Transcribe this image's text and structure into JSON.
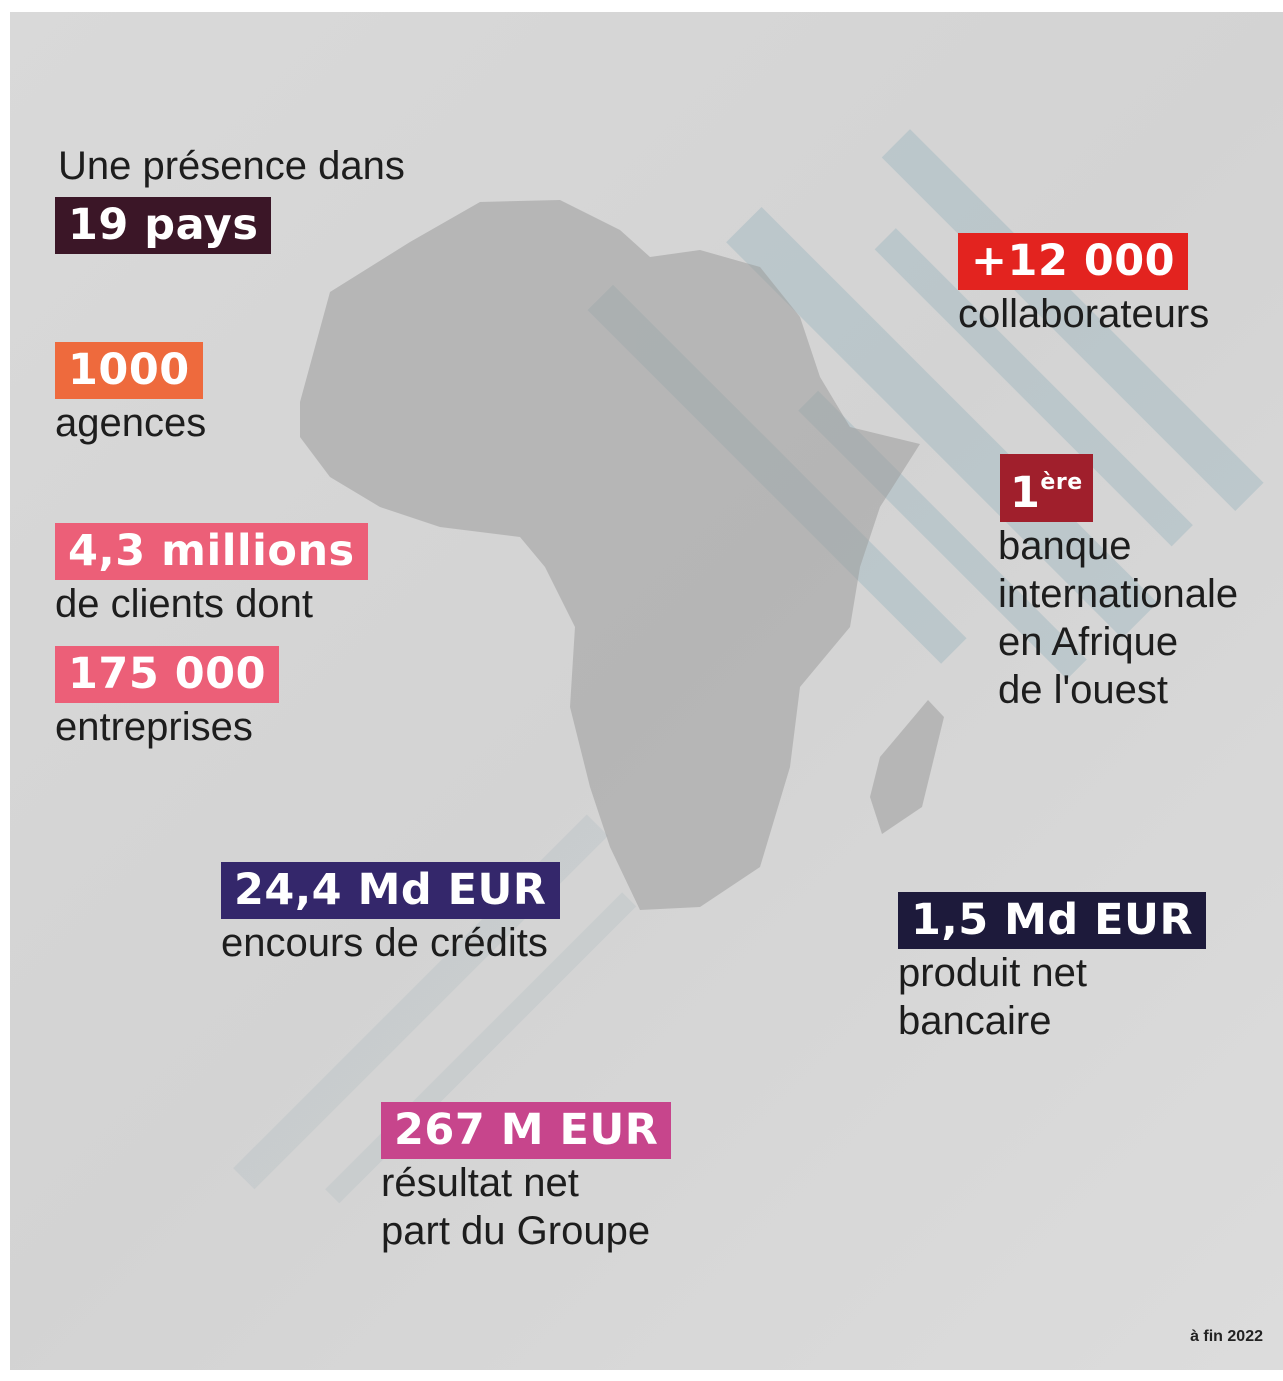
{
  "intro": "Une présence dans",
  "stats": [
    {
      "highlight": "19 pays",
      "lines": []
    },
    {
      "highlight": "1000",
      "lines": [
        "agences"
      ]
    },
    {
      "highlight": "4,3 millions",
      "lines": [
        "de clients dont"
      ]
    },
    {
      "highlight": "175 000",
      "lines": [
        "entreprises"
      ]
    },
    {
      "highlight": "+12 000",
      "lines": [
        "collaborateurs"
      ]
    },
    {
      "highlight": "1",
      "superscript": "ère",
      "lines": [
        "banque",
        "internationale",
        "en Afrique",
        "de l'ouest"
      ]
    },
    {
      "highlight": "24,4 Md EUR",
      "lines": [
        "encours de crédits"
      ]
    },
    {
      "highlight": "1,5 Md EUR",
      "lines": [
        "produit net",
        "bancaire"
      ]
    },
    {
      "highlight": "267 M EUR",
      "lines": [
        "résultat net",
        "part du Groupe"
      ]
    }
  ],
  "footnote": "à fin 2022"
}
